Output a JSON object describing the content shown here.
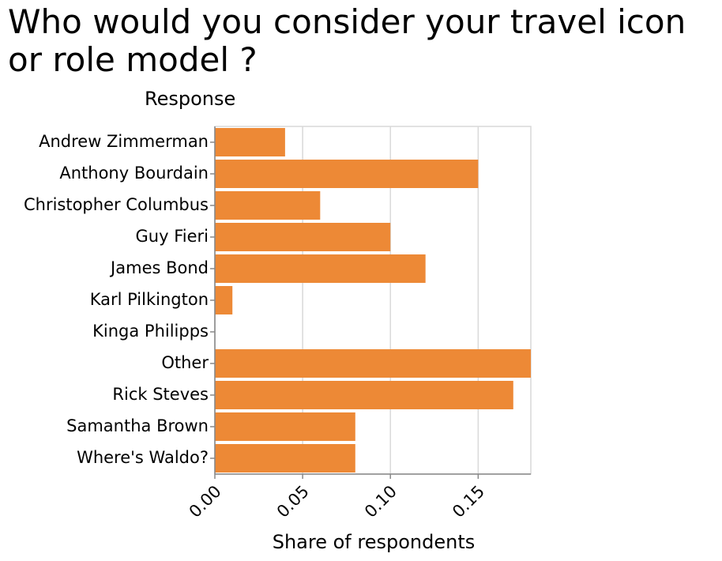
{
  "chart_data": {
    "type": "bar",
    "orientation": "horizontal",
    "title": "Who would you consider your travel icon or role model ?",
    "ylabel": "Response",
    "xlabel": "Share of respondents",
    "categories": [
      "Andrew Zimmerman",
      "Anthony Bourdain",
      "Christopher Columbus",
      "Guy Fieri",
      "James Bond",
      "Karl Pilkington",
      "Kinga Philipps",
      "Other",
      "Rick Steves",
      "Samantha Brown",
      "Where's Waldo?"
    ],
    "values": [
      0.04,
      0.15,
      0.06,
      0.1,
      0.12,
      0.01,
      0.0,
      0.18,
      0.17,
      0.08,
      0.08
    ],
    "xlim": [
      0,
      0.18
    ],
    "xticks": [
      "0.00",
      "0.05",
      "0.10",
      "0.15"
    ],
    "grid": true,
    "colors": {
      "bar": "#ed8936",
      "grid": "#d9d9d9",
      "axis": "#888888"
    }
  }
}
